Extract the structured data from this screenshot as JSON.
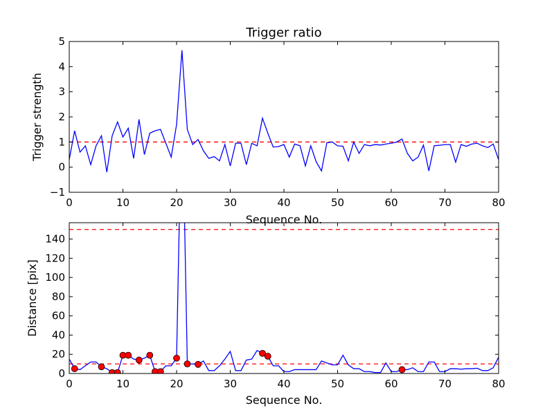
{
  "chart_data": [
    {
      "type": "line",
      "title": "Trigger ratio",
      "xlabel": "Sequence No.",
      "ylabel": "Trigger strength",
      "xlim": [
        0,
        80
      ],
      "ylim": [
        -1,
        5
      ],
      "xticks": [
        0,
        10,
        20,
        30,
        40,
        50,
        60,
        70,
        80
      ],
      "yticks": [
        -1,
        0,
        1,
        2,
        3,
        4,
        5
      ],
      "threshold": 1,
      "x_start": 0,
      "series": [
        {
          "name": "trigger strength",
          "color": "#0000ff",
          "values": [
            0.3,
            1.45,
            0.6,
            0.85,
            0.1,
            0.85,
            1.25,
            -0.2,
            1.25,
            1.8,
            1.2,
            1.55,
            0.35,
            1.9,
            0.5,
            1.35,
            1.45,
            1.5,
            0.95,
            0.4,
            1.7,
            4.65,
            1.5,
            0.9,
            1.1,
            0.65,
            0.35,
            0.42,
            0.25,
            0.9,
            0.05,
            0.95,
            0.95,
            0.1,
            0.95,
            0.85,
            1.95,
            1.35,
            0.8,
            0.82,
            0.9,
            0.4,
            0.92,
            0.85,
            0.05,
            0.85,
            0.22,
            -0.15,
            0.97,
            1.0,
            0.85,
            0.83,
            0.25,
            1.0,
            0.55,
            0.9,
            0.85,
            0.9,
            0.88,
            0.92,
            0.95,
            1.0,
            1.12,
            0.55,
            0.25,
            0.4,
            0.88,
            -0.15,
            0.85,
            0.87,
            0.9,
            0.9,
            0.2,
            0.9,
            0.83,
            0.92,
            0.95,
            0.85,
            0.78,
            0.92,
            0.3
          ]
        }
      ]
    },
    {
      "type": "line",
      "title": "",
      "xlabel": "Sequence No.",
      "ylabel": "Distance [pix]",
      "xlim": [
        0,
        80
      ],
      "ylim": [
        0,
        157
      ],
      "xticks": [
        0,
        10,
        20,
        30,
        40,
        50,
        60,
        70,
        80
      ],
      "yticks": [
        0,
        20,
        40,
        60,
        80,
        100,
        120,
        140
      ],
      "thresholds": [
        10,
        150
      ],
      "x_start": 0,
      "series": [
        {
          "name": "distance",
          "color": "#0000ff",
          "values": [
            15,
            5,
            4,
            8,
            12,
            12,
            7,
            5,
            1,
            1,
            19,
            19,
            15,
            14,
            16,
            19,
            2,
            2,
            8,
            8,
            16,
            300,
            10,
            10,
            9.5,
            13,
            3,
            3,
            8,
            15,
            23,
            3,
            3,
            14,
            15,
            24,
            21,
            18,
            8,
            8,
            2,
            2,
            4,
            4,
            4,
            4,
            4,
            13,
            11,
            9,
            9,
            19,
            9,
            5,
            5,
            2,
            2,
            1,
            1,
            11,
            2,
            2,
            4,
            4,
            6,
            2,
            2,
            12,
            12,
            2,
            2,
            5,
            5,
            4.5,
            5,
            5,
            5.5,
            3,
            3,
            6,
            17
          ]
        }
      ],
      "marked_points": [
        1,
        6,
        8,
        9,
        10,
        11,
        13,
        15,
        16,
        17,
        20,
        22,
        24,
        36,
        37,
        62
      ],
      "marker_color": "#ff0000"
    }
  ]
}
